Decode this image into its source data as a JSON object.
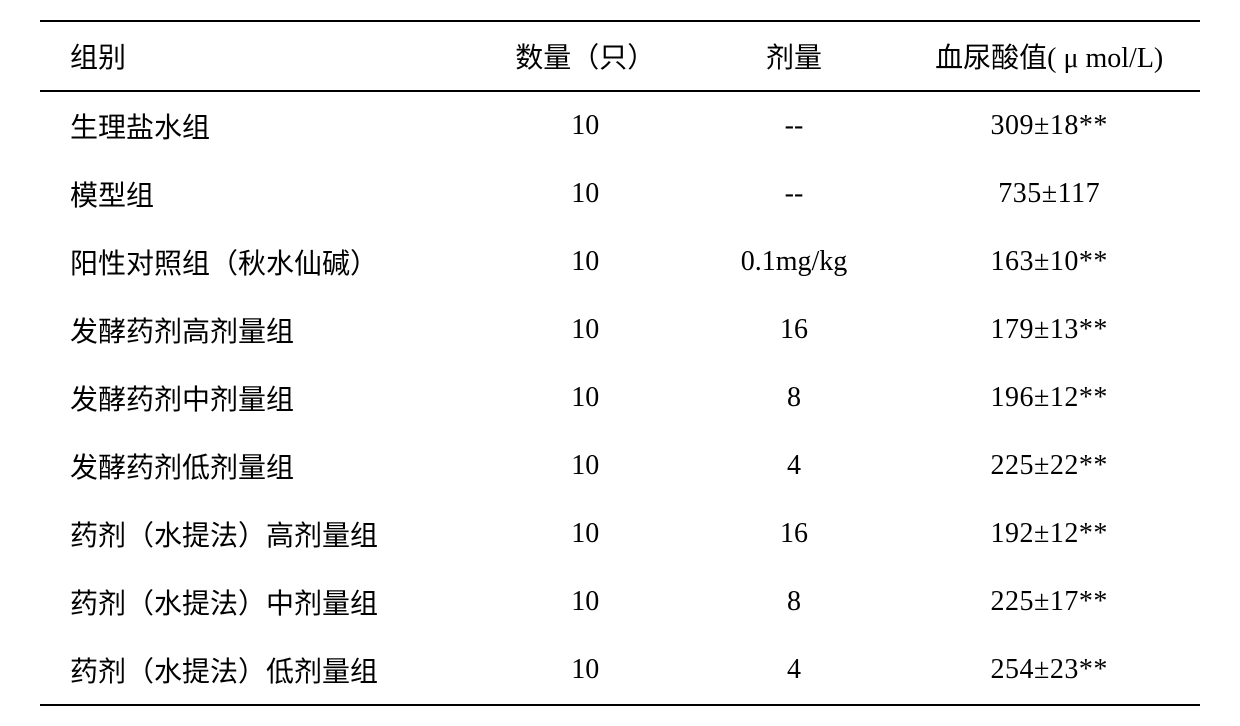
{
  "table": {
    "headers": {
      "group": "组别",
      "count": "数量（只）",
      "dose": "剂量",
      "value": "血尿酸值( μ mol/L)"
    },
    "rows": [
      {
        "group": "生理盐水组",
        "count": "10",
        "dose": "--",
        "value": "309±18**"
      },
      {
        "group": "模型组",
        "count": "10",
        "dose": "--",
        "value": "735±117"
      },
      {
        "group": "阳性对照组（秋水仙碱）",
        "count": "10",
        "dose": "0.1mg/kg",
        "value": "163±10**"
      },
      {
        "group": "发酵药剂高剂量组",
        "count": "10",
        "dose": "16",
        "value": "179±13**"
      },
      {
        "group": "发酵药剂中剂量组",
        "count": "10",
        "dose": "8",
        "value": "196±12**"
      },
      {
        "group": "发酵药剂低剂量组",
        "count": "10",
        "dose": "4",
        "value": "225±22**"
      },
      {
        "group": "药剂（水提法）高剂量组",
        "count": "10",
        "dose": "16",
        "value": "192±12**"
      },
      {
        "group": "药剂（水提法）中剂量组",
        "count": "10",
        "dose": "8",
        "value": "225±17**"
      },
      {
        "group": "药剂（水提法）低剂量组",
        "count": "10",
        "dose": "4",
        "value": "254±23**"
      }
    ]
  }
}
